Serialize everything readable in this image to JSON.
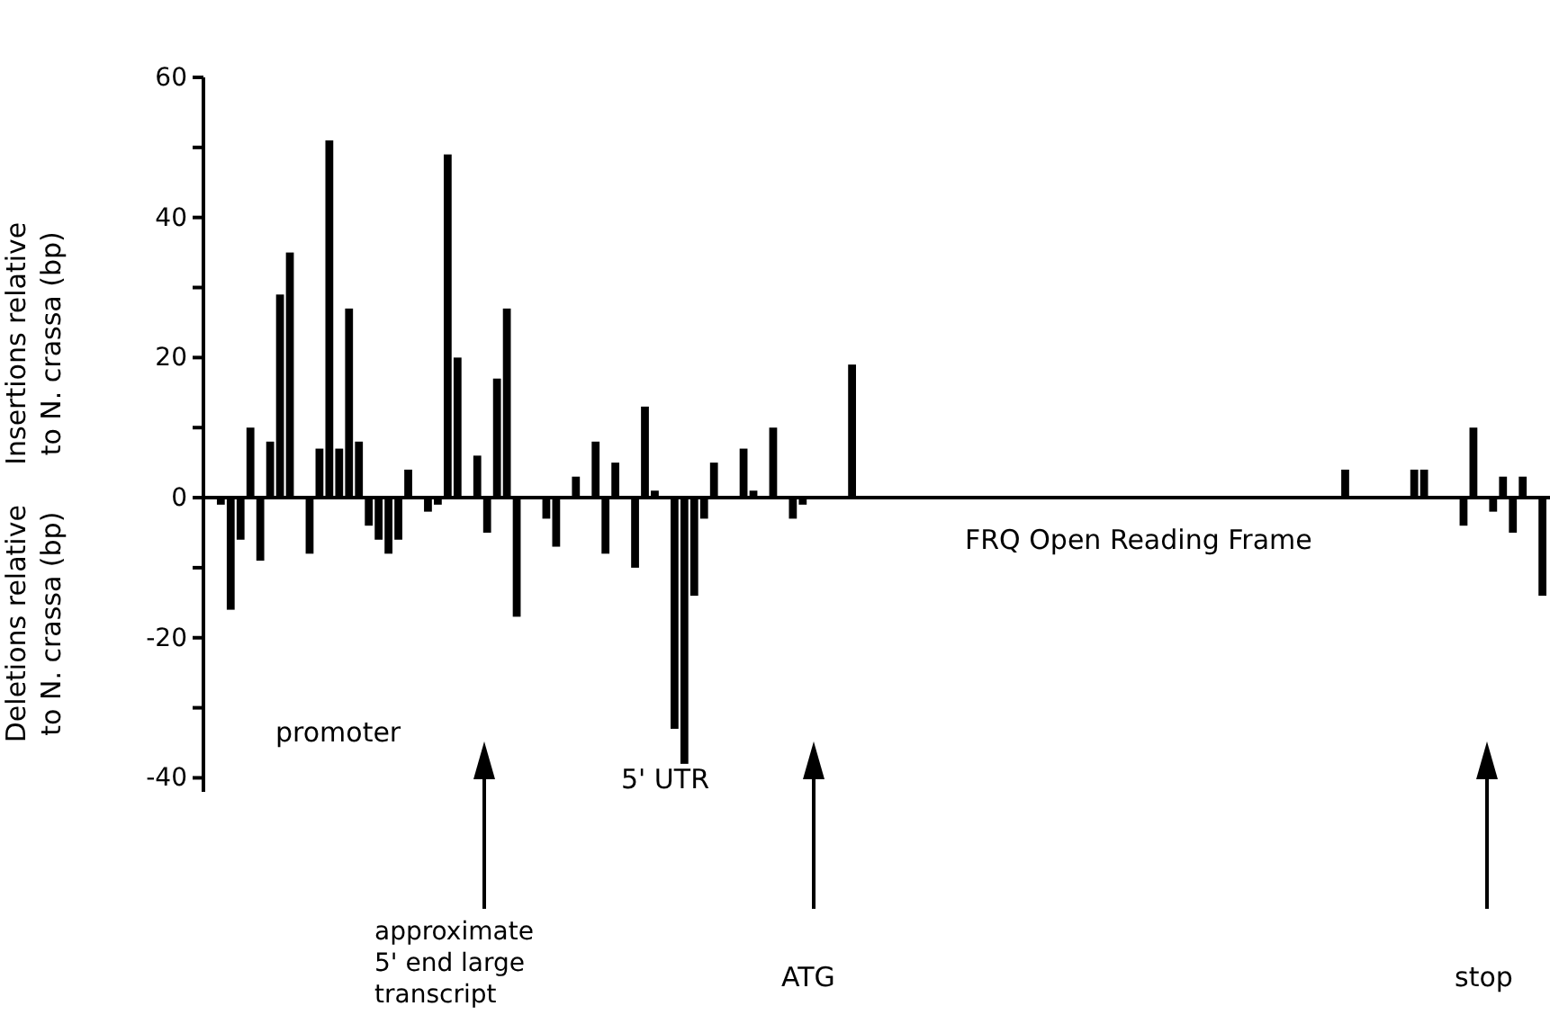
{
  "chart_data": {
    "type": "bar",
    "ylabel": "Insertions relative\nto N. crassa (bp)",
    "categories": [
      null,
      null,
      null,
      null,
      null,
      null,
      null,
      null,
      null,
      null,
      null,
      null,
      null,
      null,
      null,
      null,
      null,
      null,
      null,
      null,
      null,
      null,
      null,
      null,
      null,
      null,
      null,
      null,
      null,
      null,
      null,
      null,
      null,
      null,
      null,
      null,
      null,
      null,
      null,
      null,
      null,
      null,
      null,
      null,
      null,
      null,
      null,
      null,
      null,
      null,
      null,
      null,
      null,
      null,
      null,
      null,
      null,
      null,
      null,
      null,
      null,
      null,
      null,
      null,
      null,
      null,
      null,
      null,
      null,
      null,
      null,
      null,
      null,
      null,
      null,
      null,
      null,
      null,
      null,
      null,
      null,
      null,
      null,
      null,
      null,
      null,
      null,
      null,
      null,
      null,
      null,
      null,
      null,
      null,
      null,
      null,
      null,
      null,
      null,
      null,
      null,
      null,
      null,
      null,
      null,
      null,
      null,
      null,
      null,
      null,
      null,
      null,
      null,
      null,
      null,
      null,
      null,
      null,
      null,
      null,
      null,
      null,
      null,
      null,
      null,
      null,
      null,
      null,
      null,
      null,
      null,
      null,
      null,
      null,
      null,
      null
    ],
    "values": [
      null,
      -1,
      -16,
      -6,
      10,
      -9,
      8,
      29,
      35,
      null,
      -8,
      7,
      51,
      7,
      27,
      8,
      -4,
      -6,
      -8,
      -6,
      4,
      null,
      -2,
      -1,
      49,
      20,
      null,
      6,
      -5,
      17,
      27,
      -17,
      null,
      null,
      -3,
      -7,
      null,
      3,
      null,
      8,
      -8,
      5,
      null,
      -10,
      13,
      1,
      null,
      -33,
      -38,
      -14,
      -3,
      5,
      null,
      null,
      7,
      1,
      null,
      10,
      null,
      -3,
      -1,
      null,
      null,
      null,
      null,
      19,
      null,
      null,
      null,
      null,
      null,
      null,
      null,
      null,
      null,
      null,
      null,
      null,
      null,
      null,
      null,
      null,
      null,
      null,
      null,
      null,
      null,
      null,
      null,
      null,
      null,
      null,
      null,
      null,
      null,
      null,
      null,
      null,
      null,
      null,
      null,
      null,
      null,
      null,
      null,
      null,
      null,
      null,
      null,
      null,
      null,
      null,
      null,
      null,
      null,
      4,
      null,
      null,
      null,
      null,
      null,
      null,
      4,
      4,
      null,
      null,
      null,
      -4,
      10,
      null,
      -2,
      3,
      -5,
      3,
      null,
      -14
    ],
    "color": "#000000",
    "ylim": [
      -42,
      60
    ],
    "yticks": [
      -40,
      {
        "value": -30,
        "label": null
      },
      -20,
      {
        "value": -10,
        "label": null
      },
      0,
      {
        "value": 10,
        "label": null
      },
      20,
      {
        "value": 30,
        "label": null
      },
      40,
      {
        "value": 50,
        "label": null
      },
      60
    ],
    "annotations": [
      "FRQ Open Reading Frame",
      "promoter",
      "5' UTR",
      "approximate\n5' end large\ntranscript",
      "ATG",
      "stop",
      "Deletions relative\nto N. crassa (bp)"
    ]
  }
}
